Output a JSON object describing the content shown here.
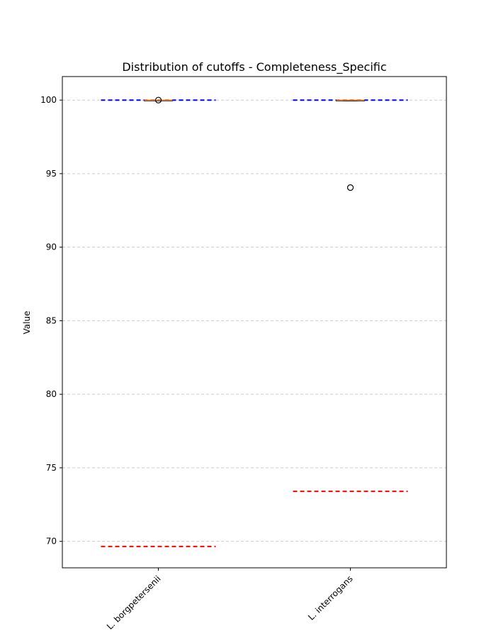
{
  "chart_data": {
    "type": "box",
    "title": "Distribution of cutoffs - Completeness_Specific",
    "xlabel": "",
    "ylabel": "Value",
    "ylim": [
      68.2,
      101.6
    ],
    "yticks": [
      70,
      75,
      80,
      85,
      90,
      95,
      100
    ],
    "categories": [
      "L. borgpetersenii",
      "L. interrogans"
    ],
    "boxes": [
      {
        "category": "L. borgpetersenii",
        "q1": 100,
        "median": 100,
        "q3": 100,
        "whisker_low": 100,
        "whisker_high": 100,
        "outliers": [
          100
        ]
      },
      {
        "category": "L. interrogans",
        "q1": 99.95,
        "median": 100,
        "q3": 100,
        "whisker_low": 99.95,
        "whisker_high": 100,
        "outliers": [
          94.05
        ]
      }
    ],
    "reference_lines": [
      {
        "category": "L. borgpetersenii",
        "upper": 100,
        "lower": 69.65
      },
      {
        "category": "L. interrogans",
        "upper": 100,
        "lower": 73.4
      }
    ],
    "grid": {
      "y": true,
      "x": false
    },
    "colors": {
      "upper_line": "#0000ff",
      "lower_line": "#ff0000",
      "median": "#ff7f0e",
      "box": "#000000",
      "grid": "#cccccc"
    }
  }
}
